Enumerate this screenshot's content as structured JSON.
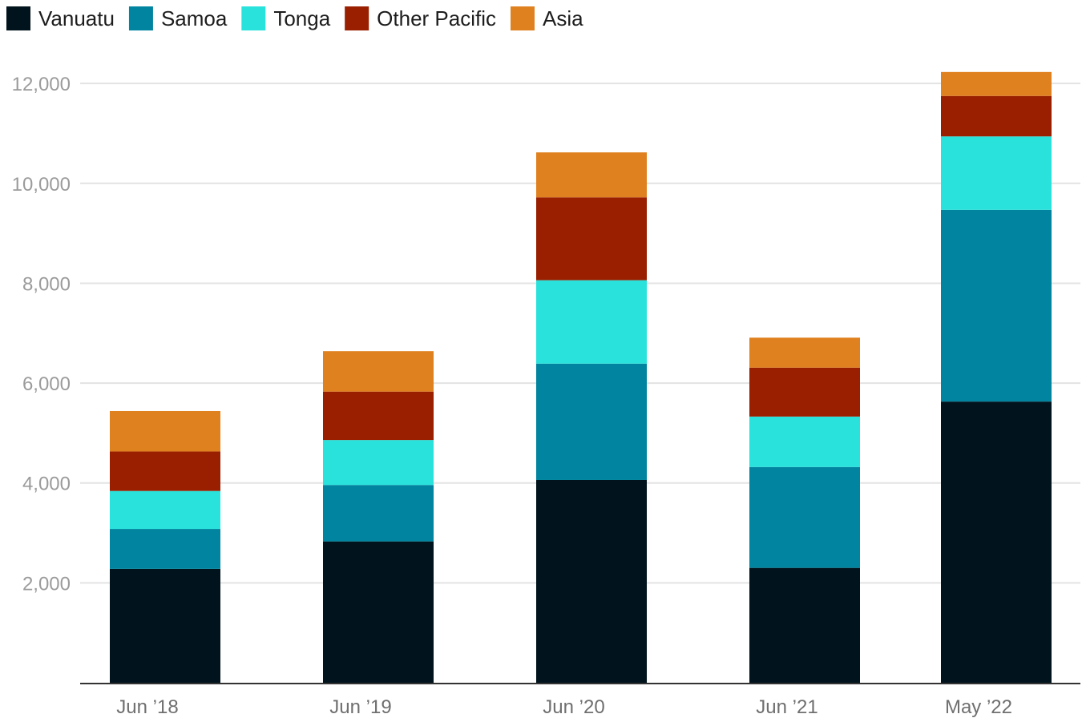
{
  "chart_data": {
    "type": "bar",
    "stacked": true,
    "title": "",
    "xlabel": "",
    "ylabel": "",
    "categories": [
      "Jun ’18",
      "Jun ’19",
      "Jun ’20",
      "Jun ’21",
      "May ’22"
    ],
    "ylim": [
      0,
      12600
    ],
    "yticks": [
      2000,
      4000,
      6000,
      8000,
      10000,
      12000
    ],
    "ytick_labels": [
      "2,000",
      "4,000",
      "6,000",
      "8,000",
      "10,000",
      "12,000"
    ],
    "grid": true,
    "legend_position": "top-left",
    "series": [
      {
        "name": "Vanuatu",
        "color": "#01131c",
        "values": [
          2280,
          2830,
          4060,
          2300,
          5630
        ]
      },
      {
        "name": "Samoa",
        "color": "#00849f",
        "values": [
          800,
          1130,
          2330,
          2020,
          3840
        ]
      },
      {
        "name": "Tonga",
        "color": "#2ae2dc",
        "values": [
          760,
          900,
          1670,
          1010,
          1470
        ]
      },
      {
        "name": "Other Pacific",
        "color": "#991f00",
        "values": [
          790,
          970,
          1660,
          980,
          810
        ]
      },
      {
        "name": "Asia",
        "color": "#e08120",
        "values": [
          810,
          810,
          900,
          600,
          480
        ]
      }
    ]
  }
}
